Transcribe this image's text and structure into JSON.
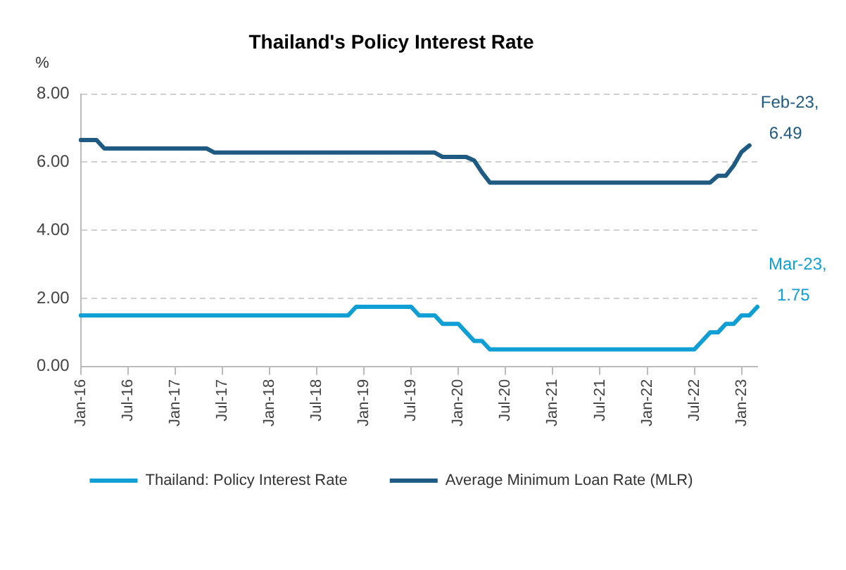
{
  "chart_data": {
    "type": "line",
    "title": "Thailand's Policy Interest Rate",
    "ylabel": "%",
    "categories": [
      "Jan-16",
      null,
      null,
      null,
      null,
      null,
      "Jul-16",
      null,
      null,
      null,
      null,
      null,
      "Jan-17",
      null,
      null,
      null,
      null,
      null,
      "Jul-17",
      null,
      null,
      null,
      null,
      null,
      "Jan-18",
      null,
      null,
      null,
      null,
      null,
      "Jul-18",
      null,
      null,
      null,
      null,
      null,
      "Jan-19",
      null,
      null,
      null,
      null,
      null,
      "Jul-19",
      null,
      null,
      null,
      null,
      null,
      "Jan-20",
      null,
      null,
      null,
      null,
      null,
      "Jul-20",
      null,
      null,
      null,
      null,
      null,
      "Jan-21",
      null,
      null,
      null,
      null,
      null,
      "Jul-21",
      null,
      null,
      null,
      null,
      null,
      "Jan-22",
      null,
      null,
      null,
      null,
      null,
      "Jul-22",
      null,
      null,
      null,
      null,
      null,
      "Jan-23",
      null,
      null
    ],
    "series": [
      {
        "name": "Thailand: Policy Interest Rate",
        "color": "#0f9fd5",
        "values": [
          1.5,
          1.5,
          1.5,
          1.5,
          1.5,
          1.5,
          1.5,
          1.5,
          1.5,
          1.5,
          1.5,
          1.5,
          1.5,
          1.5,
          1.5,
          1.5,
          1.5,
          1.5,
          1.5,
          1.5,
          1.5,
          1.5,
          1.5,
          1.5,
          1.5,
          1.5,
          1.5,
          1.5,
          1.5,
          1.5,
          1.5,
          1.5,
          1.5,
          1.5,
          1.5,
          1.75,
          1.75,
          1.75,
          1.75,
          1.75,
          1.75,
          1.75,
          1.75,
          1.5,
          1.5,
          1.5,
          1.25,
          1.25,
          1.25,
          1.0,
          0.75,
          0.75,
          0.5,
          0.5,
          0.5,
          0.5,
          0.5,
          0.5,
          0.5,
          0.5,
          0.5,
          0.5,
          0.5,
          0.5,
          0.5,
          0.5,
          0.5,
          0.5,
          0.5,
          0.5,
          0.5,
          0.5,
          0.5,
          0.5,
          0.5,
          0.5,
          0.5,
          0.5,
          0.5,
          0.75,
          1.0,
          1.0,
          1.25,
          1.25,
          1.5,
          1.5,
          1.75
        ]
      },
      {
        "name": "Average Minimum Loan Rate (MLR)",
        "color": "#1e5a82",
        "values": [
          6.65,
          6.65,
          6.65,
          6.4,
          6.4,
          6.4,
          6.4,
          6.4,
          6.4,
          6.4,
          6.4,
          6.4,
          6.4,
          6.4,
          6.4,
          6.4,
          6.4,
          6.28,
          6.28,
          6.28,
          6.28,
          6.28,
          6.28,
          6.28,
          6.28,
          6.28,
          6.28,
          6.28,
          6.28,
          6.28,
          6.28,
          6.28,
          6.28,
          6.28,
          6.28,
          6.28,
          6.28,
          6.28,
          6.28,
          6.28,
          6.28,
          6.28,
          6.28,
          6.28,
          6.28,
          6.28,
          6.15,
          6.15,
          6.15,
          6.15,
          6.05,
          5.7,
          5.4,
          5.4,
          5.4,
          5.4,
          5.4,
          5.4,
          5.4,
          5.4,
          5.4,
          5.4,
          5.4,
          5.4,
          5.4,
          5.4,
          5.4,
          5.4,
          5.4,
          5.4,
          5.4,
          5.4,
          5.4,
          5.4,
          5.4,
          5.4,
          5.4,
          5.4,
          5.4,
          5.4,
          5.4,
          5.6,
          5.6,
          5.9,
          6.3,
          6.49,
          null
        ]
      }
    ],
    "annotations": [
      "Mar-23, 1.75",
      "Feb-23, 6.49"
    ],
    "ylim": [
      0,
      8
    ],
    "yticks": [
      {
        "value": 0,
        "label": "0.00"
      },
      {
        "value": 2,
        "label": "2.00"
      },
      {
        "value": 4,
        "label": "4.00"
      },
      {
        "value": 6,
        "label": "6.00"
      },
      {
        "value": 8,
        "label": "8.00"
      }
    ],
    "grid": "y",
    "legend": "bottom",
    "marker": "none",
    "line_style": "solid"
  }
}
